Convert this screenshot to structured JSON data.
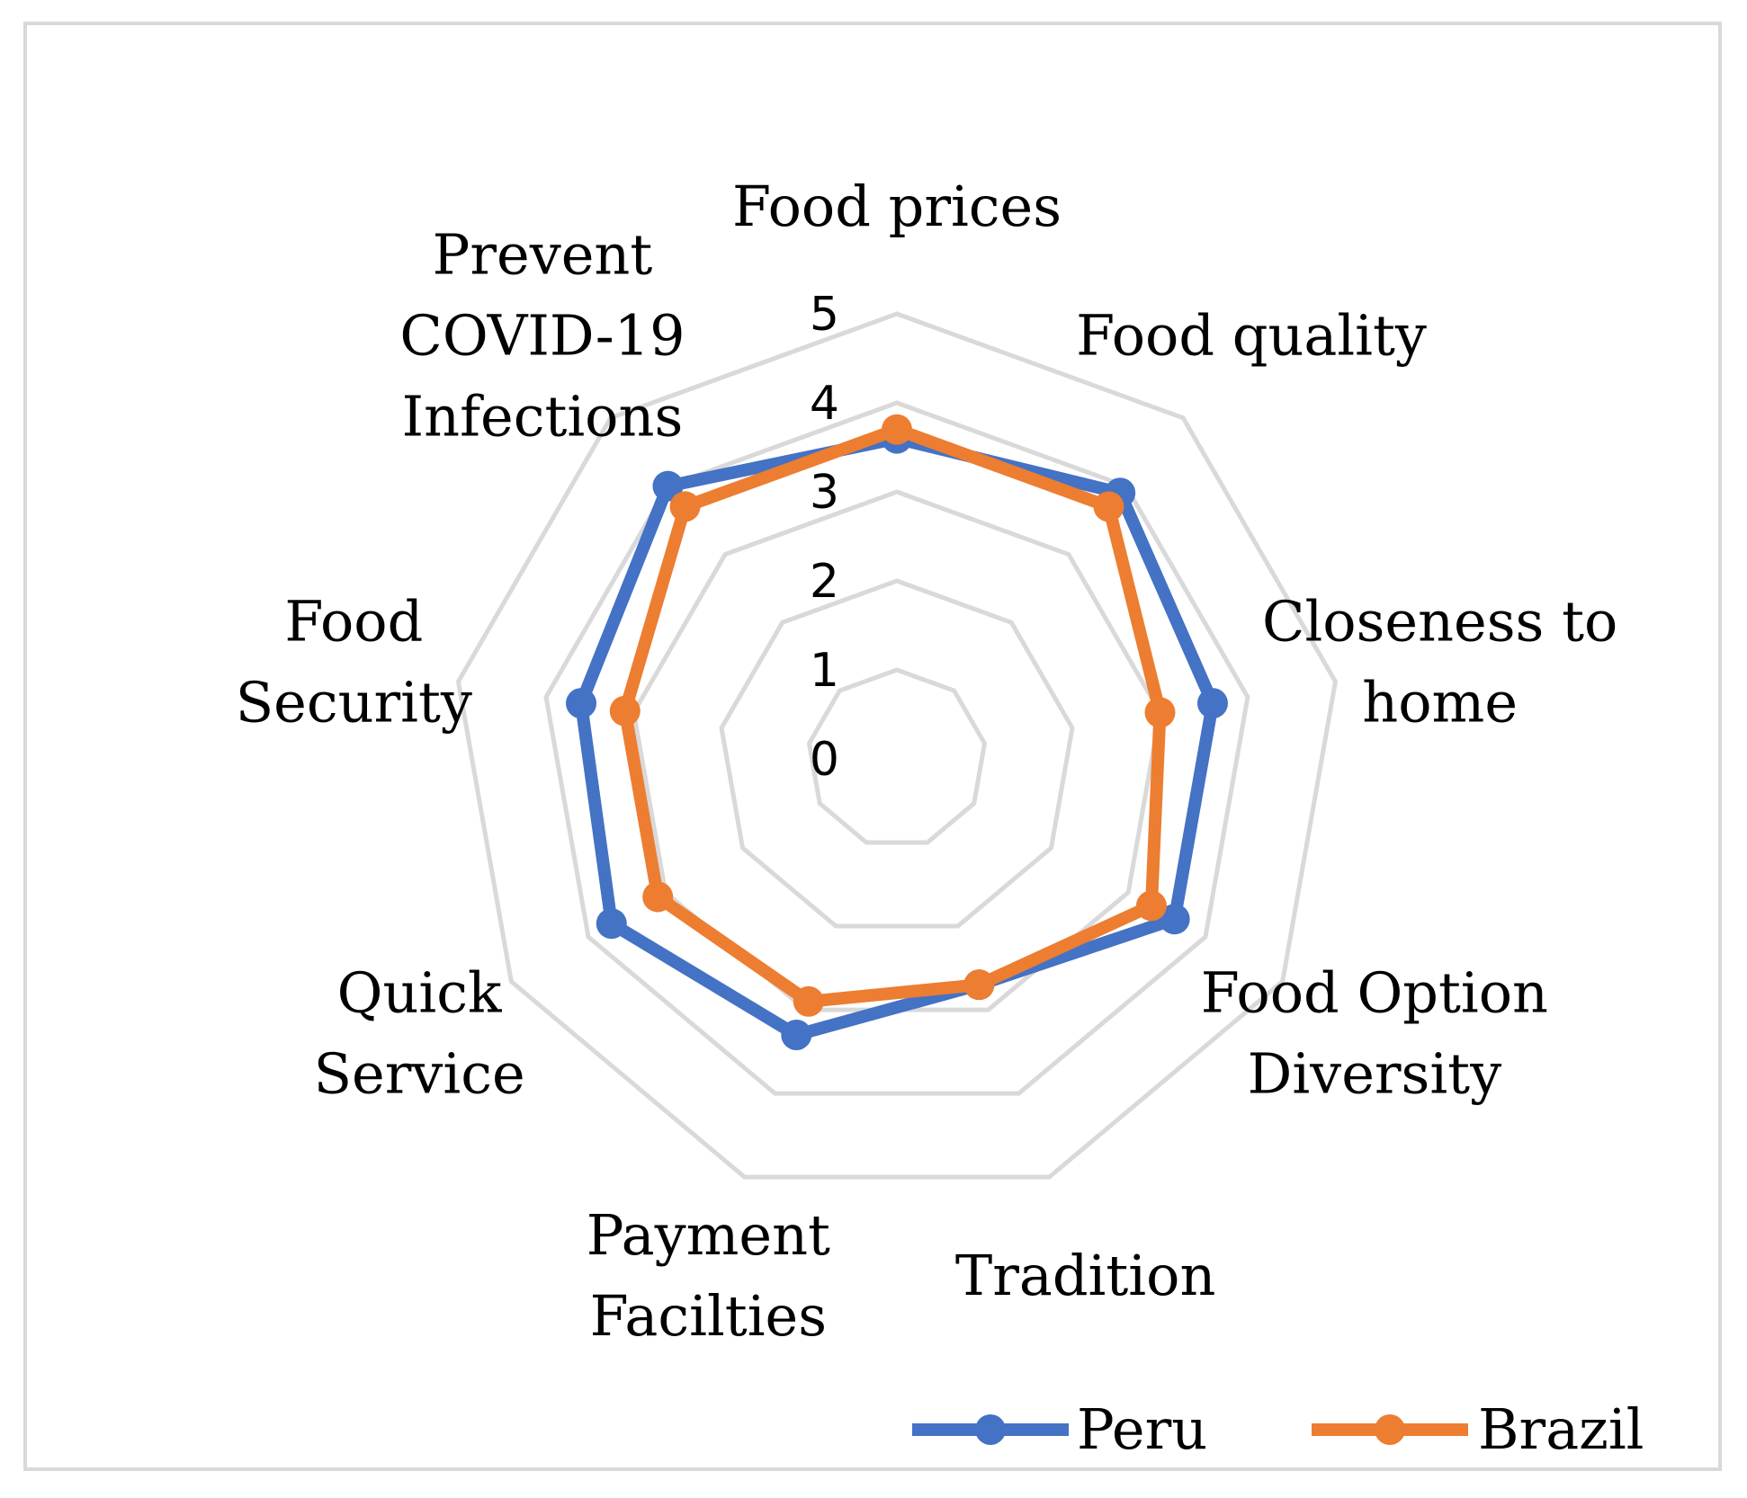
{
  "chart_data": {
    "type": "radar",
    "categories": [
      [
        "Food prices"
      ],
      [
        "Food quality"
      ],
      [
        "Closeness to",
        "home"
      ],
      [
        "Food Option",
        "Diversity"
      ],
      [
        "Tradition"
      ],
      [
        "Payment",
        "Facilties"
      ],
      [
        "Quick",
        "Service"
      ],
      [
        "Food",
        "Security"
      ],
      [
        "Prevent",
        "COVID-19",
        "Infections"
      ]
    ],
    "rlim": [
      0,
      5
    ],
    "ticks": [
      "0",
      "1",
      "2",
      "3",
      "4",
      "5"
    ],
    "grid": true,
    "legend_position": "bottom-right",
    "series": [
      {
        "name": "Peru",
        "color": "#4472C4",
        "values": [
          3.6,
          3.9,
          3.6,
          3.6,
          2.7,
          3.3,
          3.7,
          3.6,
          4.0
        ]
      },
      {
        "name": "Brazil",
        "color": "#ED7D31",
        "values": [
          3.7,
          3.7,
          3.0,
          3.3,
          2.7,
          2.9,
          3.1,
          3.1,
          3.7
        ]
      }
    ]
  }
}
